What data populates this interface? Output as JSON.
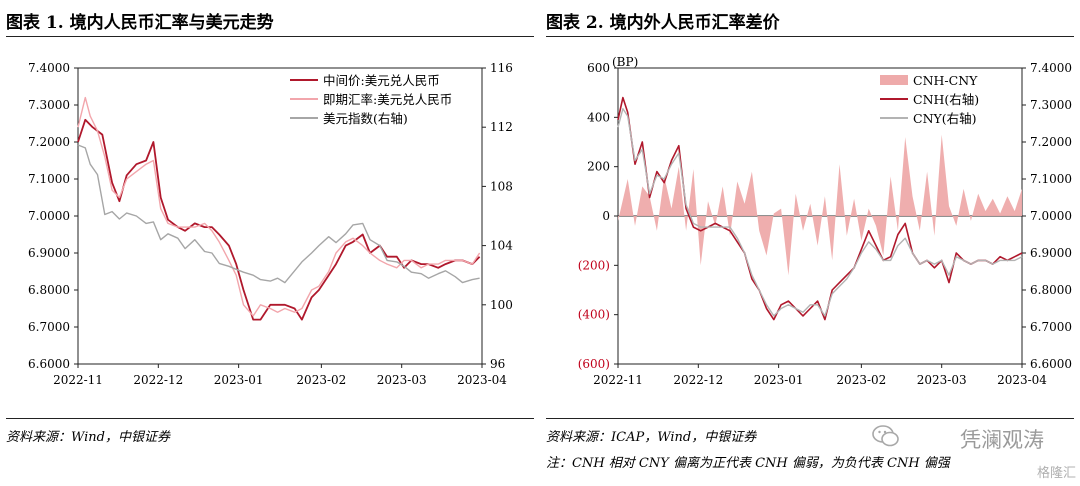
{
  "left": {
    "title": "图表 1. 境内人民币汇率与美元走势",
    "source": "资料来源：Wind，中银证券",
    "chart_data": {
      "type": "line",
      "x_ticks": [
        "2022-11",
        "2022-12",
        "2023-01",
        "2023-02",
        "2023-03",
        "2023-04"
      ],
      "y_left_ticks": [
        "7.4000",
        "7.3000",
        "7.2000",
        "7.1000",
        "7.0000",
        "6.9000",
        "6.8000",
        "6.7000",
        "6.6000"
      ],
      "y_left_range": [
        6.6,
        7.4
      ],
      "y_right_ticks": [
        "116",
        "112",
        "108",
        "104",
        "100",
        "96"
      ],
      "y_right_range": [
        96,
        116
      ],
      "legend_position": "top-right",
      "series": [
        {
          "name": "中间价:美元兑人民币",
          "axis": "left",
          "color": "#b0182c",
          "width": 1.8,
          "x": [
            0,
            3,
            6,
            10,
            14,
            17,
            20,
            24,
            28,
            31,
            34,
            37,
            41,
            44,
            48,
            52,
            55,
            58,
            62,
            65,
            68,
            72,
            75,
            79,
            82,
            85,
            89,
            92,
            96,
            99,
            103,
            106,
            110,
            113,
            117,
            120,
            124,
            127,
            131,
            134,
            137,
            141,
            144,
            148,
            151,
            155,
            158,
            162,
            165
          ],
          "values": [
            7.2,
            7.26,
            7.24,
            7.22,
            7.09,
            7.04,
            7.11,
            7.14,
            7.15,
            7.2,
            7.05,
            6.99,
            6.97,
            6.96,
            6.98,
            6.97,
            6.97,
            6.95,
            6.92,
            6.87,
            6.8,
            6.72,
            6.72,
            6.76,
            6.76,
            6.76,
            6.75,
            6.72,
            6.78,
            6.8,
            6.84,
            6.87,
            6.92,
            6.93,
            6.95,
            6.9,
            6.92,
            6.89,
            6.89,
            6.86,
            6.88,
            6.87,
            6.87,
            6.86,
            6.87,
            6.88,
            6.88,
            6.87,
            6.89
          ]
        },
        {
          "name": "即期汇率:美元兑人民币",
          "axis": "left",
          "color": "#f2a6ac",
          "width": 1.4,
          "x": [
            0,
            3,
            5,
            8,
            11,
            14,
            17,
            20,
            24,
            28,
            31,
            34,
            37,
            41,
            44,
            48,
            52,
            55,
            58,
            62,
            65,
            68,
            72,
            75,
            79,
            82,
            85,
            89,
            92,
            96,
            99,
            103,
            106,
            110,
            113,
            117,
            120,
            124,
            127,
            131,
            134,
            137,
            141,
            144,
            148,
            151,
            155,
            158,
            162,
            165
          ],
          "values": [
            7.24,
            7.32,
            7.27,
            7.23,
            7.16,
            7.07,
            7.05,
            7.1,
            7.12,
            7.14,
            7.15,
            7.02,
            6.98,
            6.97,
            6.97,
            6.97,
            6.98,
            6.96,
            6.93,
            6.88,
            6.84,
            6.76,
            6.73,
            6.76,
            6.75,
            6.74,
            6.75,
            6.74,
            6.75,
            6.8,
            6.81,
            6.85,
            6.9,
            6.93,
            6.94,
            6.92,
            6.9,
            6.88,
            6.87,
            6.86,
            6.88,
            6.88,
            6.86,
            6.87,
            6.87,
            6.88,
            6.88,
            6.88,
            6.87,
            6.9
          ]
        },
        {
          "name": "美元指数(右轴)",
          "axis": "right",
          "color": "#a6a6a6",
          "width": 1.4,
          "x": [
            0,
            3,
            5,
            8,
            11,
            14,
            17,
            20,
            24,
            28,
            31,
            34,
            37,
            41,
            44,
            48,
            52,
            55,
            58,
            62,
            65,
            68,
            72,
            75,
            79,
            82,
            85,
            89,
            92,
            96,
            99,
            103,
            106,
            110,
            113,
            117,
            120,
            124,
            127,
            131,
            134,
            137,
            141,
            144,
            148,
            151,
            155,
            158,
            162,
            165
          ],
          "values": [
            110.8,
            110.6,
            109.5,
            108.8,
            106.1,
            106.3,
            105.8,
            106.2,
            106.0,
            105.5,
            105.6,
            104.4,
            104.8,
            104.5,
            103.8,
            104.4,
            103.6,
            103.5,
            102.8,
            102.6,
            102.4,
            102.2,
            102.0,
            101.7,
            101.6,
            101.8,
            101.5,
            102.3,
            102.9,
            103.5,
            104.0,
            104.6,
            104.2,
            104.8,
            105.4,
            105.5,
            104.4,
            104.0,
            103.0,
            102.9,
            102.6,
            102.2,
            102.1,
            101.8,
            102.1,
            102.3,
            101.9,
            101.5,
            101.7,
            101.8
          ]
        }
      ]
    }
  },
  "right": {
    "title": "图表 2. 境内外人民币汇率差价",
    "source": "资料来源：ICAP，Wind，中银证券",
    "note": "注：CNH 相对 CNY 偏离为正代表 CNH 偏弱，为负代表 CNH 偏强",
    "chart_data": {
      "type": "line",
      "x_ticks": [
        "2022-11",
        "2022-12",
        "2023-01",
        "2023-02",
        "2023-03",
        "2023-04"
      ],
      "y_left_unit": "(BP)",
      "y_left_ticks": [
        "600",
        "400",
        "200",
        "0",
        "(200)",
        "(400)",
        "(600)"
      ],
      "y_left_range": [
        -600,
        600
      ],
      "y_right_ticks": [
        "7.4000",
        "7.3000",
        "7.2000",
        "7.1000",
        "7.0000",
        "6.9000",
        "6.8000",
        "6.7000",
        "6.6000"
      ],
      "y_right_range": [
        6.6,
        7.4
      ],
      "legend_position": "top-right",
      "series": [
        {
          "name": "CNH-CNY",
          "axis": "left",
          "kind": "area",
          "color": "#eeaaaa",
          "x": [
            0,
            4,
            7,
            10,
            13,
            16,
            19,
            22,
            25,
            28,
            31,
            34,
            37,
            40,
            43,
            46,
            49,
            52,
            55,
            58,
            61,
            64,
            67,
            70,
            73,
            76,
            79,
            82,
            85,
            88,
            91,
            94,
            97,
            100,
            103,
            106,
            109,
            112,
            115,
            118,
            121,
            124,
            127,
            130,
            133,
            136,
            139,
            142,
            145,
            148,
            151,
            154,
            157,
            160,
            163,
            166
          ],
          "values": [
            -20,
            150,
            -40,
            120,
            80,
            -60,
            160,
            30,
            200,
            -60,
            190,
            -200,
            60,
            -40,
            120,
            -80,
            140,
            50,
            180,
            -60,
            -160,
            10,
            30,
            -240,
            90,
            -60,
            50,
            -120,
            80,
            -180,
            210,
            -80,
            70,
            -100,
            30,
            -40,
            -160,
            160,
            -60,
            320,
            80,
            -60,
            180,
            -80,
            330,
            40,
            -40,
            110,
            -20,
            90,
            20,
            70,
            10,
            80,
            20,
            110
          ]
        },
        {
          "name": "CNH(右轴)",
          "axis": "right",
          "color": "#b0182c",
          "width": 1.6,
          "x": [
            0,
            2,
            4,
            7,
            10,
            13,
            16,
            19,
            22,
            25,
            28,
            31,
            34,
            37,
            40,
            43,
            46,
            49,
            52,
            55,
            58,
            61,
            64,
            67,
            70,
            73,
            76,
            79,
            82,
            85,
            88,
            91,
            94,
            97,
            100,
            103,
            106,
            109,
            112,
            115,
            118,
            121,
            124,
            127,
            130,
            133,
            136,
            139,
            142,
            145,
            148,
            151,
            154,
            157,
            160,
            163,
            166
          ],
          "values": [
            7.26,
            7.32,
            7.28,
            7.14,
            7.2,
            7.05,
            7.12,
            7.09,
            7.15,
            7.19,
            7.02,
            6.97,
            6.96,
            6.97,
            6.98,
            6.97,
            6.96,
            6.93,
            6.9,
            6.83,
            6.8,
            6.75,
            6.72,
            6.76,
            6.77,
            6.75,
            6.73,
            6.75,
            6.77,
            6.72,
            6.8,
            6.82,
            6.84,
            6.86,
            6.91,
            6.96,
            6.92,
            6.88,
            6.89,
            6.95,
            6.98,
            6.9,
            6.87,
            6.88,
            6.86,
            6.88,
            6.82,
            6.9,
            6.88,
            6.87,
            6.88,
            6.88,
            6.87,
            6.89,
            6.88,
            6.89,
            6.9
          ]
        },
        {
          "name": "CNY(右轴)",
          "axis": "right",
          "color": "#b3b3b3",
          "width": 1.4,
          "x": [
            0,
            2,
            4,
            7,
            10,
            13,
            16,
            19,
            22,
            25,
            28,
            31,
            34,
            37,
            40,
            43,
            46,
            49,
            52,
            55,
            58,
            61,
            64,
            67,
            70,
            73,
            76,
            79,
            82,
            85,
            88,
            91,
            94,
            97,
            100,
            103,
            106,
            109,
            112,
            115,
            118,
            121,
            124,
            127,
            130,
            133,
            136,
            139,
            142,
            145,
            148,
            151,
            154,
            157,
            160,
            163,
            166
          ],
          "values": [
            7.24,
            7.29,
            7.27,
            7.15,
            7.18,
            7.06,
            7.11,
            7.1,
            7.14,
            7.17,
            7.03,
            6.98,
            6.97,
            6.97,
            6.97,
            6.97,
            6.97,
            6.94,
            6.9,
            6.84,
            6.8,
            6.76,
            6.73,
            6.75,
            6.76,
            6.75,
            6.74,
            6.76,
            6.76,
            6.73,
            6.79,
            6.81,
            6.83,
            6.86,
            6.9,
            6.93,
            6.91,
            6.88,
            6.88,
            6.92,
            6.94,
            6.9,
            6.87,
            6.88,
            6.87,
            6.88,
            6.84,
            6.89,
            6.88,
            6.87,
            6.88,
            6.88,
            6.87,
            6.88,
            6.88,
            6.88,
            6.89
          ]
        }
      ]
    }
  },
  "watermark": {
    "text": "凭澜观涛",
    "sub": "格隆汇"
  }
}
